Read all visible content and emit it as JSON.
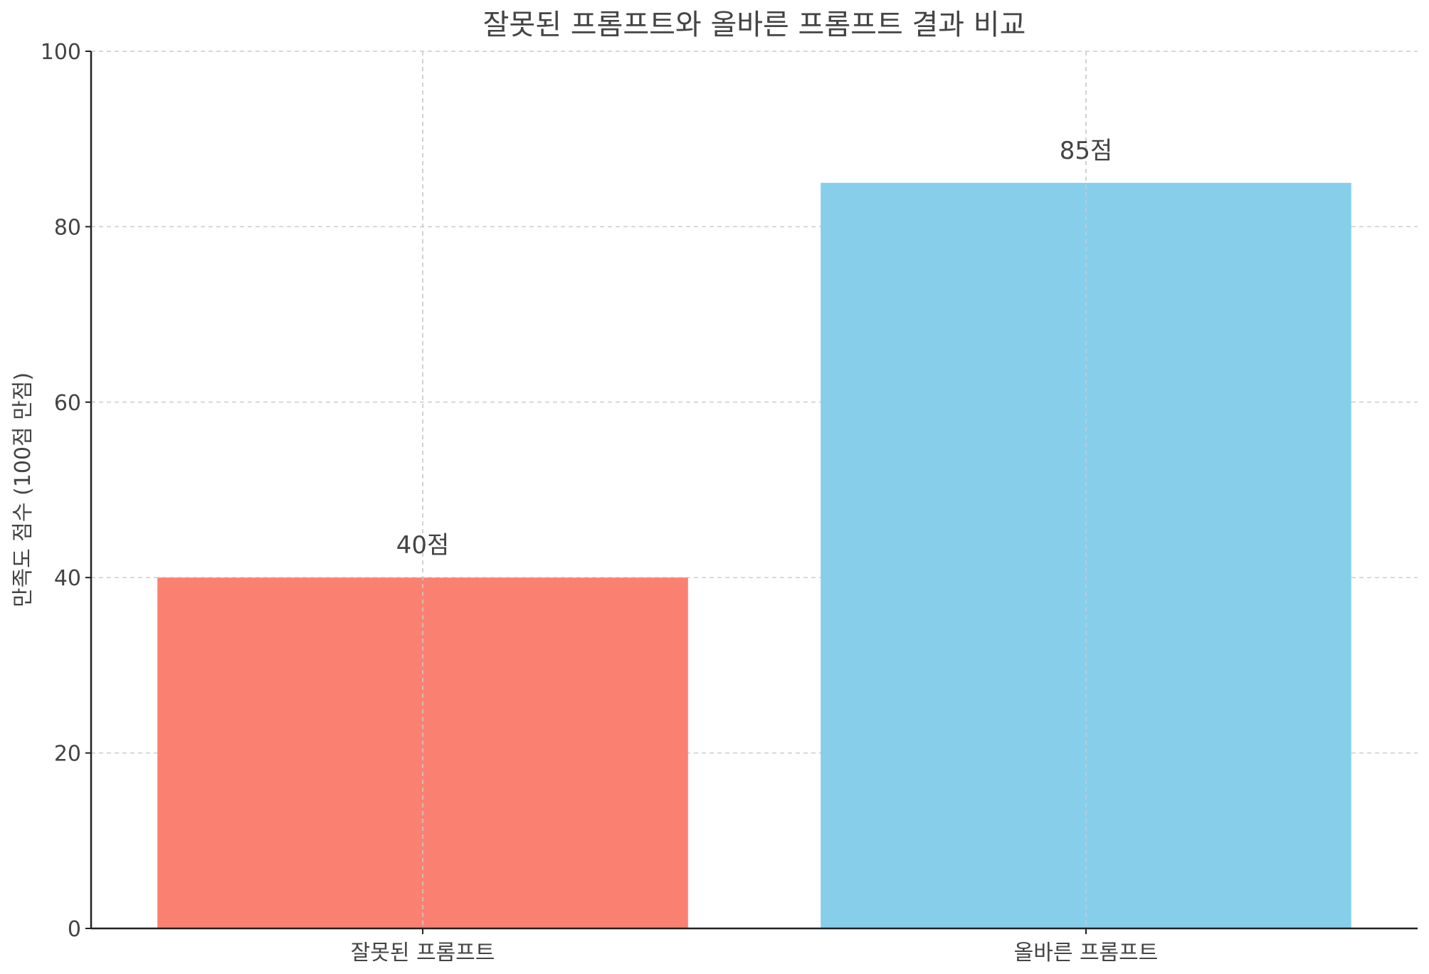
{
  "chart_data": {
    "type": "bar",
    "title": "잘못된 프롬프트와 올바른 프롬프트 결과 비교",
    "xlabel": "",
    "ylabel": "만족도 점수 (100점 만점)",
    "categories": [
      "잘못된 프롬프트",
      "올바른 프롬프트"
    ],
    "values": [
      40,
      85
    ],
    "value_labels": [
      "40점",
      "85점"
    ],
    "colors": [
      "#fa8072",
      "#87ceeb"
    ],
    "ylim": [
      0,
      100
    ],
    "yticks": [
      0,
      20,
      40,
      60,
      80,
      100
    ],
    "grid": true
  }
}
